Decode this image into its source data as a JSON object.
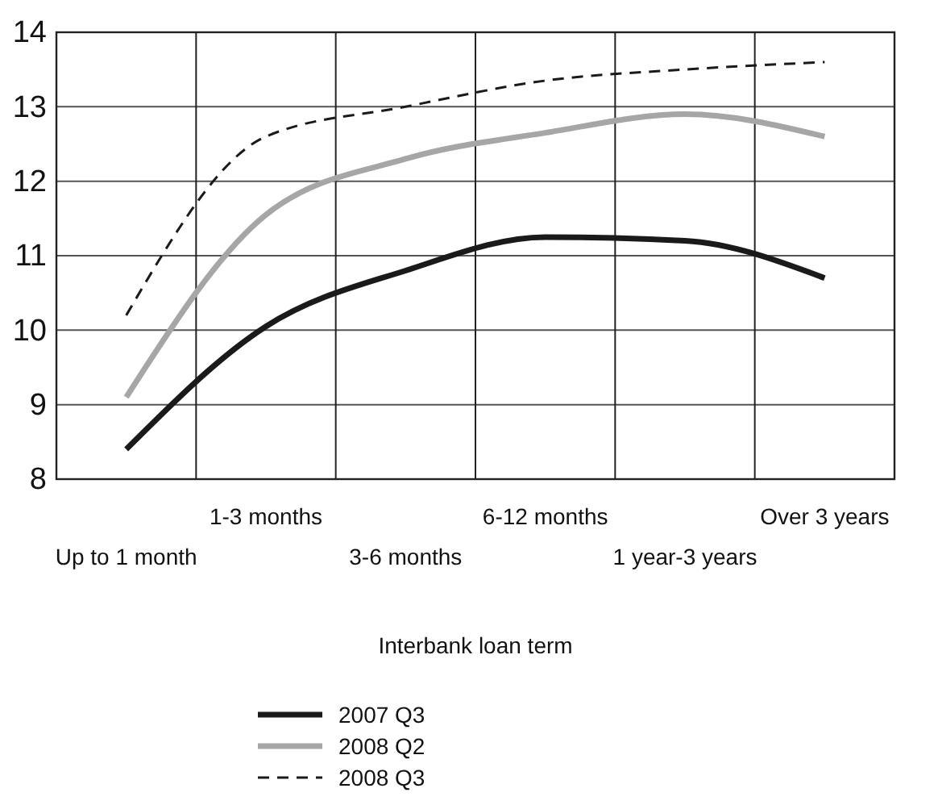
{
  "chart_data": {
    "type": "line",
    "xlabel": "Interbank loan term",
    "categories": [
      "Up to 1 month",
      "1-3 months",
      "3-6 months",
      "6-12 months",
      "1 year-3 years",
      "Over 3 years"
    ],
    "series": [
      {
        "name": "2007 Q3",
        "color": "#1a1a1a",
        "values": [
          8.4,
          10.05,
          10.8,
          11.25,
          11.2,
          10.7
        ]
      },
      {
        "name": "2008 Q2",
        "color": "#a6a6a6",
        "values": [
          9.1,
          11.55,
          12.3,
          12.65,
          12.9,
          12.6
        ]
      },
      {
        "name": "2008 Q3",
        "color": "#1a1a1a",
        "line_style": "dashed",
        "values": [
          10.2,
          12.6,
          13.0,
          13.35,
          13.5,
          13.6
        ]
      }
    ],
    "ylim": [
      8,
      14
    ],
    "yticks": [
      8,
      9,
      10,
      11,
      12,
      13,
      14
    ],
    "grid": true,
    "legend": "bottom",
    "marker": "none"
  }
}
